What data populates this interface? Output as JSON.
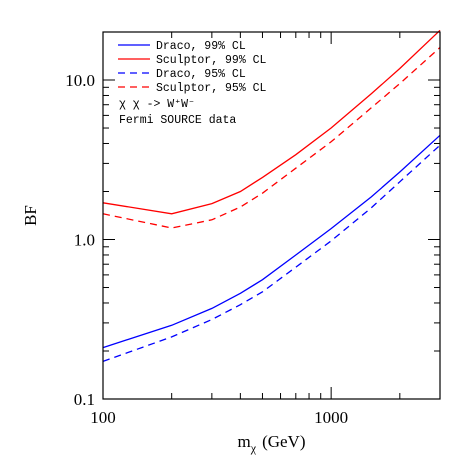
{
  "chart_data": {
    "type": "line",
    "xlabel": "m",
    "xlabel_sub": "χ",
    "xlabel_unit": "(GeV)",
    "ylabel": "BF",
    "xscale": "log",
    "yscale": "log",
    "xlim": [
      100,
      3000
    ],
    "ylim": [
      0.1,
      20
    ],
    "x_ticks": [
      {
        "value": 100,
        "label": "100"
      },
      {
        "value": 1000,
        "label": "1000"
      }
    ],
    "y_ticks": [
      {
        "value": 0.1,
        "label": "0.1"
      },
      {
        "value": 1.0,
        "label": "1.0"
      },
      {
        "value": 10.0,
        "label": "10.0"
      }
    ],
    "legend_position": "top-left",
    "series": [
      {
        "name": "Draco, 99% CL",
        "color": "#0000ff",
        "dash": "solid",
        "x": [
          100,
          200,
          300,
          400,
          500,
          700,
          1000,
          1500,
          2000,
          3000
        ],
        "y": [
          0.21,
          0.29,
          0.37,
          0.46,
          0.56,
          0.8,
          1.17,
          1.85,
          2.65,
          4.5
        ]
      },
      {
        "name": "Sculptor, 99% CL",
        "color": "#ff0000",
        "dash": "solid",
        "x": [
          100,
          200,
          300,
          400,
          500,
          700,
          1000,
          1500,
          2000,
          3000
        ],
        "y": [
          1.7,
          1.45,
          1.68,
          2.0,
          2.45,
          3.4,
          5.0,
          8.2,
          11.8,
          20.5
        ]
      },
      {
        "name": "Draco, 95% CL",
        "color": "#0000ff",
        "dash": "dashed",
        "x": [
          100,
          200,
          300,
          400,
          500,
          700,
          1000,
          1500,
          2000,
          3000
        ],
        "y": [
          0.172,
          0.245,
          0.315,
          0.39,
          0.47,
          0.67,
          0.98,
          1.58,
          2.3,
          3.9
        ]
      },
      {
        "name": "Sculptor, 95% CL",
        "color": "#ff0000",
        "dash": "dashed",
        "x": [
          100,
          200,
          300,
          400,
          500,
          700,
          1000,
          1500,
          2000,
          3000
        ],
        "y": [
          1.45,
          1.18,
          1.33,
          1.6,
          1.95,
          2.8,
          4.1,
          6.7,
          9.5,
          16.0
        ]
      }
    ],
    "annotations": [
      "χ χ -> W⁺W⁻",
      "Fermi SOURCE data"
    ]
  }
}
